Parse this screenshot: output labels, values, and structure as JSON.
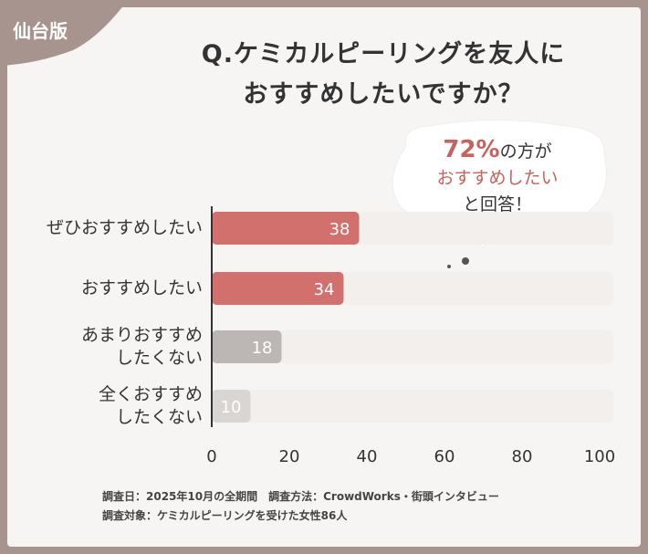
{
  "badge": "仙台版",
  "chart_data": {
    "type": "bar",
    "horizontal": true,
    "title": "Q.ケミカルピーリングを友人に\nおすすめしたいですか？",
    "categories": [
      "ぜひおすすめしたい",
      "おすすめしたい",
      "あまりおすすめ\nしたくない",
      "全くおすすめ\nしたくない"
    ],
    "values": [
      38,
      34,
      18,
      10
    ],
    "colors": [
      "#d2706d",
      "#d2706d",
      "#bcb7b4",
      "#d9d5d3"
    ],
    "track_color": "#f3efed",
    "xlim": [
      0,
      100
    ],
    "xticks": [
      0,
      20,
      40,
      60,
      80,
      100
    ],
    "annotation": {
      "highlight": "72%",
      "line1": "の方が",
      "line2": "おすすめしたい",
      "line3": "と回答！"
    },
    "notes": [
      "調査日：2025年10月の全期間　調査方法：CrowdWorks・街頭インタビュー",
      "調査対象：ケミカルピーリングを受けた女性86人"
    ]
  }
}
